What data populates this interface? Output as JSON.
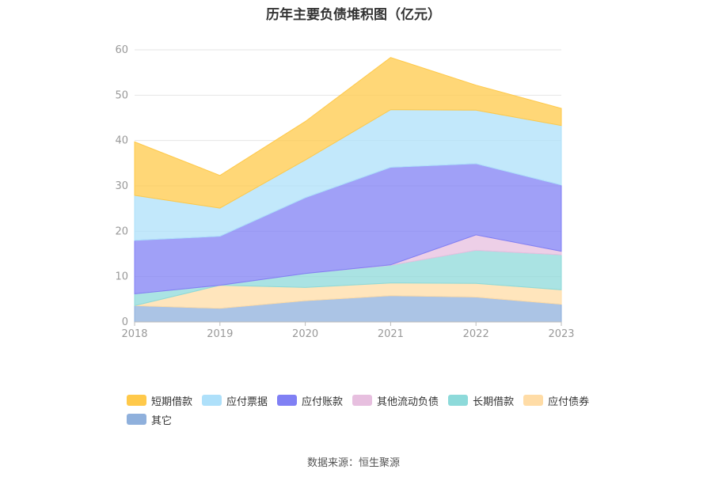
{
  "chart_data": {
    "type": "area",
    "stacked": true,
    "title": "历年主要负债堆积图（亿元）",
    "categories": [
      "2018",
      "2019",
      "2020",
      "2021",
      "2022",
      "2023"
    ],
    "y_ticks": [
      "0",
      "10",
      "20",
      "30",
      "40",
      "50",
      "60"
    ],
    "ylim": [
      0,
      60
    ],
    "grid": true,
    "legend_position": "bottom",
    "series": [
      {
        "name": "其它",
        "color": "#8fb0dc",
        "values": [
          3.6,
          3.0,
          4.7,
          5.8,
          5.5,
          3.9
        ]
      },
      {
        "name": "应付债券",
        "color": "#ffdca6",
        "values": [
          0.0,
          5.1,
          2.9,
          2.8,
          3.0,
          3.2
        ]
      },
      {
        "name": "长期借款",
        "color": "#8ddada",
        "values": [
          2.6,
          0.0,
          3.1,
          3.9,
          7.3,
          7.7
        ]
      },
      {
        "name": "其他流动负债",
        "color": "#e7bfdf",
        "values": [
          0.0,
          0.0,
          0.0,
          0.1,
          3.4,
          0.8
        ]
      },
      {
        "name": "应付账款",
        "color": "#8080f4",
        "values": [
          11.8,
          10.8,
          16.7,
          21.5,
          15.7,
          14.6
        ]
      },
      {
        "name": "应付票据",
        "color": "#aee0fa",
        "values": [
          9.9,
          6.2,
          8.3,
          12.7,
          11.8,
          13.1
        ]
      },
      {
        "name": "短期借款",
        "color": "#ffc94a",
        "values": [
          11.8,
          7.2,
          8.5,
          11.5,
          5.5,
          3.8
        ]
      }
    ],
    "legend_order": [
      "短期借款",
      "应付票据",
      "应付账款",
      "其他流动负债",
      "长期借款",
      "应付债券",
      "其它"
    ]
  },
  "source": "数据来源：恒生聚源"
}
